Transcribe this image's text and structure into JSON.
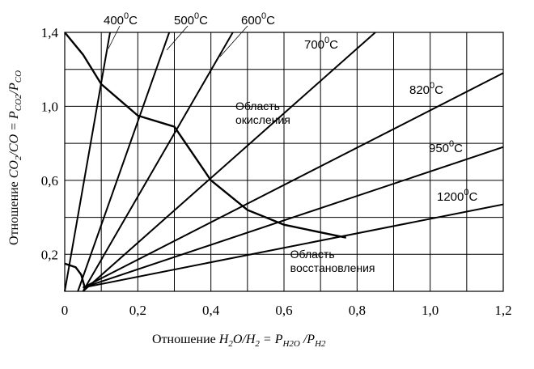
{
  "chart_data": {
    "type": "line",
    "xlabel": "Отношение  H2O/H2 = PH2O /PH2",
    "ylabel": "Отношение  CO2/CO = PCO2/PCO",
    "xlim": [
      0,
      1.2
    ],
    "ylim": [
      0,
      1.4
    ],
    "x_ticks": [
      "0",
      "0,2",
      "0,4",
      "0,6",
      "0,8",
      "1,0",
      "1,2"
    ],
    "y_ticks": [
      "0,2",
      "0,6",
      "1,0",
      "1,4"
    ],
    "grid": true,
    "isotherms": [
      {
        "name": "400°C",
        "label_base": "400",
        "label_sup": "0",
        "label_unit": "C",
        "x": [
          0,
          0.124
        ],
        "y": [
          0,
          1.4
        ]
      },
      {
        "name": "500°C",
        "label_base": "500",
        "label_sup": "0",
        "label_unit": "C",
        "x": [
          0.036,
          0.286
        ],
        "y": [
          0,
          1.4
        ]
      },
      {
        "name": "600°C",
        "label_base": "600",
        "label_sup": "0",
        "label_unit": "C",
        "x": [
          0.05,
          0.46
        ],
        "y": [
          0,
          1.4
        ]
      },
      {
        "name": "700°C",
        "label_base": "700",
        "label_sup": "0",
        "label_unit": "C",
        "x": [
          0.05,
          0.85
        ],
        "y": [
          0,
          1.4
        ]
      },
      {
        "name": "820°C",
        "label_base": "820",
        "label_sup": "0",
        "label_unit": "C",
        "x": [
          0.05,
          1.2
        ],
        "y": [
          0.02,
          1.18
        ]
      },
      {
        "name": "950°C",
        "label_base": "950",
        "label_sup": "0",
        "label_unit": "C",
        "x": [
          0.05,
          1.2
        ],
        "y": [
          0.02,
          0.78
        ]
      },
      {
        "name": "1200°C",
        "label_base": "1200",
        "label_sup": "0",
        "label_unit": "C",
        "x": [
          0.05,
          1.2
        ],
        "y": [
          0.02,
          0.47
        ]
      }
    ],
    "boundary": {
      "x": [
        0,
        0.05,
        0.1,
        0.2,
        0.3,
        0.4,
        0.5,
        0.6,
        0.77
      ],
      "y": [
        1.4,
        1.28,
        1.12,
        0.95,
        0.89,
        0.6,
        0.44,
        0.36,
        0.29
      ]
    },
    "boundary_low": {
      "x": [
        0,
        0.03,
        0.045,
        0.055
      ],
      "y": [
        0.15,
        0.13,
        0.09,
        0.02
      ]
    },
    "annotations": [
      {
        "text_lines": [
          "Область",
          "окисления"
        ],
        "x": 0.6,
        "y": 0.98
      },
      {
        "text_lines": [
          "Область",
          "восстановления"
        ],
        "x": 0.71,
        "y": 0.18
      }
    ]
  }
}
